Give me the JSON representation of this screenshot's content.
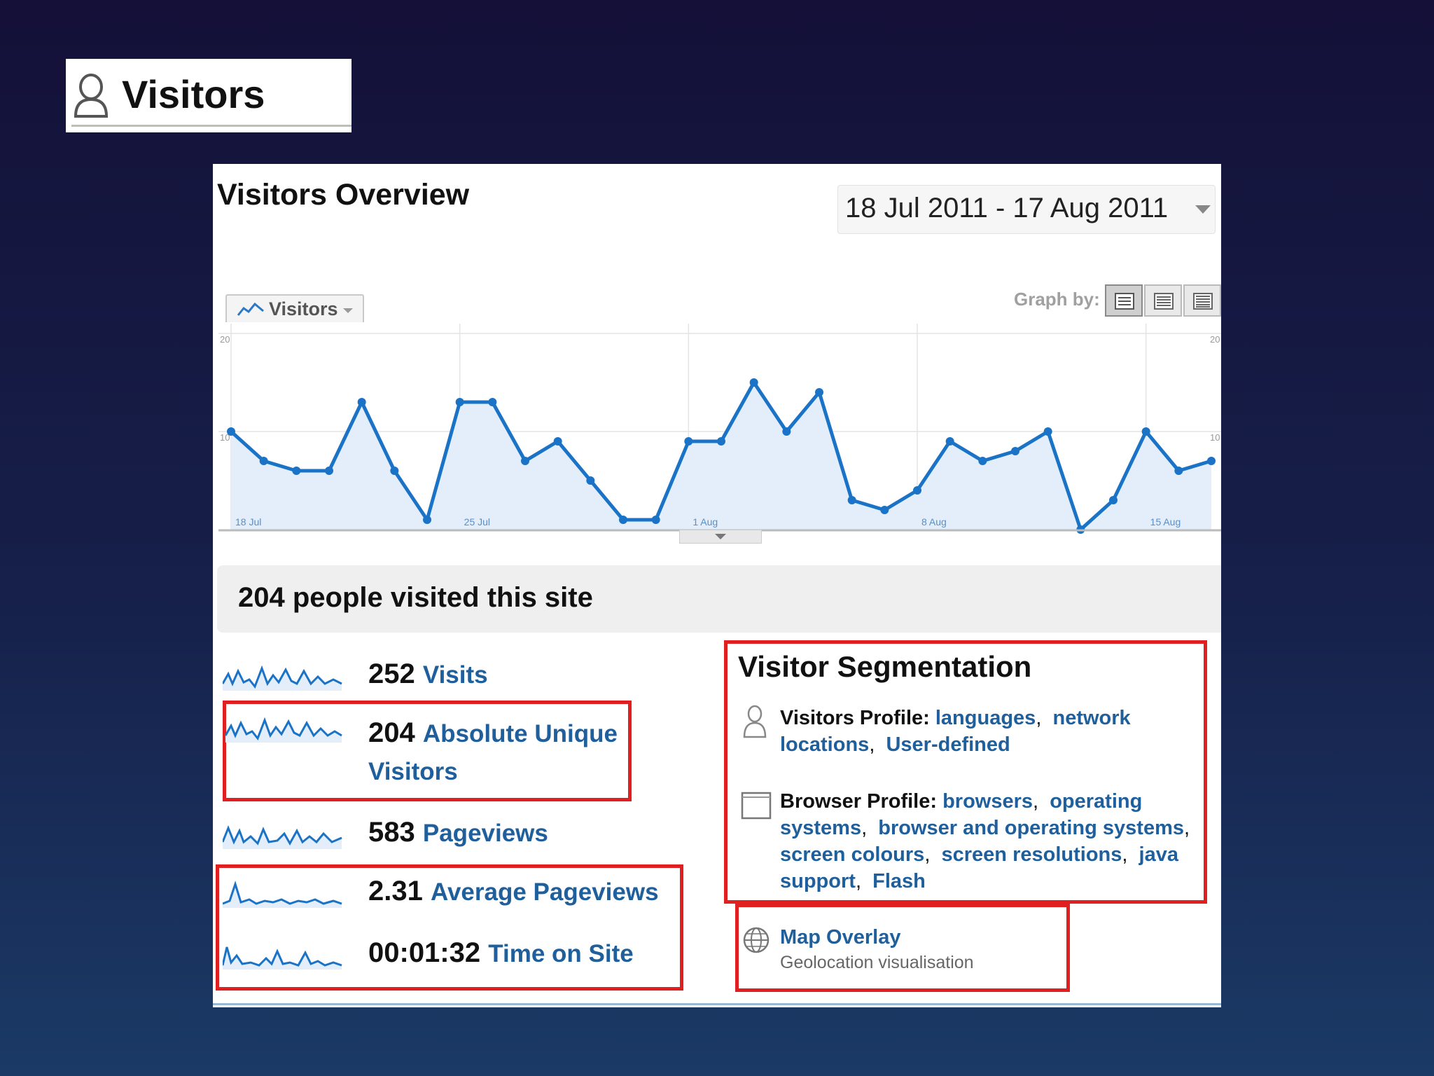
{
  "badge": {
    "title": "Visitors",
    "icon": "person-outline-icon"
  },
  "report": {
    "title": "Visitors Overview",
    "date_range": "18 Jul 2011 - 17 Aug 2011",
    "graph_tab": {
      "label": "Visitors",
      "icon": "line-chart-icon"
    },
    "graph_by_label": "Graph by:",
    "graph_by_options": [
      "day",
      "week",
      "month"
    ],
    "graph_by_selected": "day"
  },
  "chart_data": {
    "type": "area",
    "title": "",
    "xlabel": "",
    "ylabel": "",
    "ylim": [
      0,
      20
    ],
    "yticks_left": [
      "20",
      "10"
    ],
    "yticks_right": [
      "20",
      "10"
    ],
    "x_tick_labels": [
      "18 Jul",
      "25 Jul",
      "1 Aug",
      "8 Aug",
      "15 Aug"
    ],
    "x": [
      "18 Jul",
      "19 Jul",
      "20 Jul",
      "21 Jul",
      "22 Jul",
      "23 Jul",
      "24 Jul",
      "25 Jul",
      "26 Jul",
      "27 Jul",
      "28 Jul",
      "29 Jul",
      "30 Jul",
      "31 Jul",
      "1 Aug",
      "2 Aug",
      "3 Aug",
      "4 Aug",
      "5 Aug",
      "6 Aug",
      "7 Aug",
      "8 Aug",
      "9 Aug",
      "10 Aug",
      "11 Aug",
      "12 Aug",
      "13 Aug",
      "14 Aug",
      "15 Aug",
      "16 Aug",
      "17 Aug"
    ],
    "series": [
      {
        "values": [
          10,
          7,
          6,
          6,
          13,
          6,
          1,
          13,
          13,
          7,
          9,
          5,
          1,
          1,
          9,
          9,
          15,
          10,
          14,
          3,
          2,
          4,
          9,
          7,
          8,
          10,
          0,
          3,
          10,
          6,
          7
        ]
      }
    ],
    "grid": true,
    "colors": {
      "line": "#1a73c6",
      "fill": "#e3eefa"
    }
  },
  "summary": {
    "headline": "204 people visited this site"
  },
  "metrics": [
    {
      "value": "252",
      "label": "Visits"
    },
    {
      "value": "204",
      "label": "Absolute Unique Visitors",
      "label_line1": "Absolute Unique",
      "label_line2": "Visitors"
    },
    {
      "value": "583",
      "label": "Pageviews"
    },
    {
      "value": "2.31",
      "label": "Average Pageviews"
    },
    {
      "value": "00:01:32",
      "label": "Time on Site"
    }
  ],
  "segmentation": {
    "title": "Visitor Segmentation",
    "visitors_profile": {
      "label": "Visitors Profile:",
      "icon": "person-outline-icon",
      "links": [
        "languages",
        "network locations",
        "User-defined"
      ]
    },
    "browser_profile": {
      "label": "Browser Profile:",
      "icon": "browser-window-icon",
      "links": [
        "browsers",
        "operating systems",
        "browser and operating systems",
        "screen colours",
        "screen resolutions",
        "java support",
        "Flash"
      ]
    },
    "map_overlay": {
      "title": "Map Overlay",
      "subtitle": "Geolocation visualisation",
      "icon": "globe-icon"
    }
  },
  "colors": {
    "highlight": "#e02020",
    "link": "#1f5f9c",
    "accent": "#1a73c6"
  }
}
